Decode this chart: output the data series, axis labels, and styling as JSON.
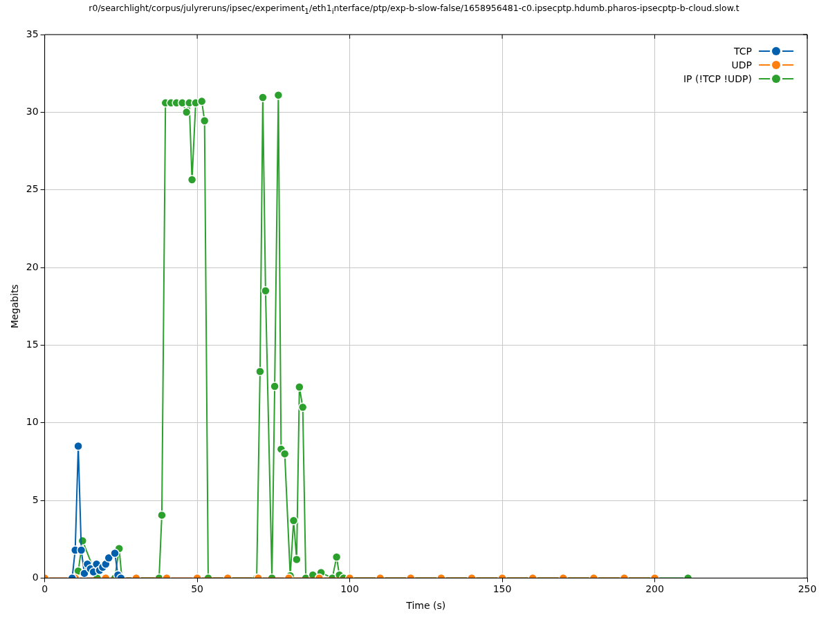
{
  "chart_data": {
    "type": "line",
    "title": "r0/searchlight/corpus/julyreruns/ipsec/experiment$_{1}$/eth1$_{i}$nterface/ptp/exp-b-slow-false/1658956481-c0.ipsecptp.hdumb.pharos-ipsecptp-b-cloud.slow.t",
    "xlabel": "Time (s)",
    "ylabel": "Megabits",
    "xlim": [
      0,
      250
    ],
    "xticks": [
      0,
      50,
      100,
      150,
      200,
      250
    ],
    "ylim": [
      0,
      35
    ],
    "yticks": [
      0,
      5,
      10,
      15,
      20,
      25,
      30,
      35
    ],
    "grid": true,
    "legend": "top right",
    "marker": "circle",
    "line_style": "solid",
    "series": [
      {
        "name": "TCP",
        "color": "#0060ad",
        "x": [
          9,
          10,
          11,
          12,
          13,
          14,
          15,
          16,
          17,
          18,
          19,
          20,
          21,
          23,
          24,
          25
        ],
        "values": [
          0,
          1.8,
          8.5,
          1.8,
          0.3,
          0.9,
          0.6,
          0.4,
          0.9,
          0.5,
          0.7,
          0.9,
          1.3,
          1.6,
          0.2,
          0
        ]
      },
      {
        "name": "UDP",
        "color": "#ff7f0e",
        "x": [
          0,
          10,
          20,
          30,
          40,
          50,
          60,
          70,
          80,
          90,
          100,
          110,
          120,
          130,
          140,
          150,
          160,
          170,
          180,
          190,
          200
        ],
        "values": [
          0,
          0,
          0,
          0,
          0,
          0,
          0,
          0,
          0,
          0,
          0,
          0,
          0,
          0,
          0,
          0,
          0,
          0,
          0,
          0,
          0
        ]
      },
      {
        "name": "IP (!TCP  !UDP)",
        "color": "#2ca02c",
        "x": [
          9.4,
          11,
          12.4,
          17.2,
          23,
          24.4,
          25.3,
          37.5,
          38.4,
          39.6,
          41.4,
          43.2,
          45.1,
          46.5,
          47.4,
          48.3,
          49.5,
          51.5,
          52.4,
          53.6,
          69.5,
          70.6,
          71.5,
          72.4,
          74.5,
          75.4,
          76.6,
          77.5,
          78.7,
          80.5,
          81.6,
          82.6,
          83.5,
          84.6,
          85.6,
          87.9,
          90.6,
          94.3,
          95.7,
          96.6,
          98,
          110,
          130,
          150,
          170,
          190,
          210.9
        ],
        "values": [
          0,
          0.45,
          2.4,
          0,
          0,
          1.9,
          0,
          0,
          4.05,
          30.6,
          30.6,
          30.6,
          30.6,
          30,
          30.6,
          25.65,
          30.6,
          30.7,
          29.45,
          0,
          0,
          13.3,
          30.95,
          18.5,
          0,
          12.35,
          31.1,
          8.3,
          8,
          0.15,
          3.7,
          1.2,
          12.3,
          11,
          0,
          0.2,
          0.35,
          0,
          1.35,
          0.2,
          0,
          0,
          0,
          0,
          0,
          0,
          0
        ]
      }
    ]
  }
}
